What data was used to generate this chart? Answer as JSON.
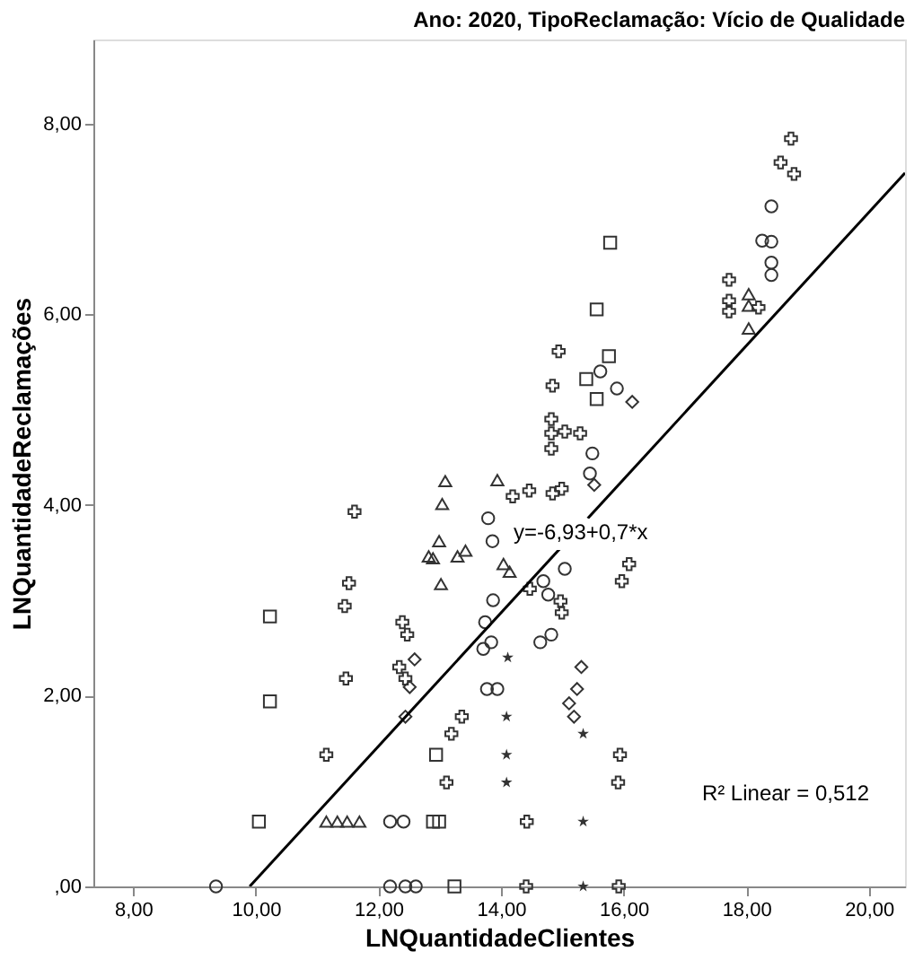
{
  "chart_data": {
    "type": "scatter",
    "title": "Ano: 2020, TipoReclamação: Vício de Qualidade",
    "xlabel": "LNQuantidadeClientes",
    "ylabel": "LNQuantidadeReclamações",
    "xlim": [
      7.35,
      20.59
    ],
    "ylim": [
      0,
      8.88
    ],
    "xticks": [
      {
        "value": 8,
        "label": "8,00"
      },
      {
        "value": 10,
        "label": "10,00"
      },
      {
        "value": 12,
        "label": "12,00"
      },
      {
        "value": 14,
        "label": "14,00"
      },
      {
        "value": 16,
        "label": "16,00"
      },
      {
        "value": 18,
        "label": "18,00"
      },
      {
        "value": 20,
        "label": "20,00"
      }
    ],
    "yticks": [
      {
        "value": 0,
        "label": ",00"
      },
      {
        "value": 2,
        "label": "2,00"
      },
      {
        "value": 4,
        "label": "4,00"
      },
      {
        "value": 6,
        "label": "6,00"
      },
      {
        "value": 8,
        "label": "8,00"
      }
    ],
    "grid": false,
    "series": [
      {
        "color": "#333333",
        "marker": "circle",
        "x": [
          18.41,
          18.26,
          18.41,
          18.41,
          18.41,
          15.62,
          15.89,
          15.49,
          15.45,
          15.04,
          13.87,
          13.84,
          14.82,
          13.77,
          13.94,
          12.19,
          12.41,
          9.35,
          12.19,
          12.44,
          12.61,
          13.79,
          13.86,
          14.69,
          14.77,
          14.64,
          13.74,
          13.71
        ],
        "values": [
          7.13,
          6.77,
          6.76,
          6.54,
          6.41,
          5.4,
          5.22,
          4.54,
          4.33,
          3.33,
          3.0,
          2.56,
          2.64,
          2.07,
          2.07,
          0.68,
          0.68,
          0,
          0,
          0,
          0,
          3.86,
          3.62,
          3.2,
          3.06,
          2.56,
          2.77,
          2.49
        ]
      },
      {
        "color": "#333333",
        "marker": "square",
        "x": [
          15.78,
          15.56,
          15.76,
          15.39,
          15.56,
          10.23,
          10.23,
          12.94,
          10.05,
          12.89,
          12.99,
          13.24
        ],
        "values": [
          6.75,
          6.05,
          5.56,
          5.32,
          5.11,
          2.83,
          1.94,
          1.38,
          0.68,
          0.68,
          0.68,
          0
        ]
      },
      {
        "color": "#333333",
        "marker": "triangle",
        "x": [
          18.04,
          18.04,
          18.04,
          13.94,
          14.04,
          14.14,
          13.09,
          13.04,
          12.99,
          12.89,
          12.82,
          13.29,
          13.42,
          13.02,
          11.15,
          11.33,
          11.49,
          11.69
        ],
        "values": [
          6.21,
          6.09,
          5.85,
          4.26,
          3.38,
          3.3,
          4.25,
          4.01,
          3.62,
          3.44,
          3.46,
          3.46,
          3.52,
          3.17,
          0.68,
          0.68,
          0.68,
          0.68
        ]
      },
      {
        "color": "#333333",
        "marker": "diamond",
        "x": [
          16.14,
          15.52,
          15.31,
          15.24,
          15.11,
          15.19,
          12.59,
          12.51,
          12.44
        ],
        "values": [
          5.08,
          4.21,
          2.3,
          2.07,
          1.92,
          1.78,
          2.38,
          2.09,
          1.78
        ]
      },
      {
        "color": "#333333",
        "marker": "cross",
        "x": [
          18.73,
          18.56,
          18.78,
          17.72,
          17.72,
          17.72,
          18.2,
          14.94,
          14.84,
          14.82,
          14.82,
          14.82,
          15.29,
          14.19,
          14.46,
          15.04,
          14.84,
          14.99,
          16.09,
          15.97,
          11.61,
          11.52,
          11.45,
          11.47,
          14.47,
          14.42,
          14.41,
          13.36,
          13.19,
          13.11,
          14.97,
          14.99,
          15.94,
          15.91,
          15.92,
          12.39,
          12.47,
          12.34,
          12.44,
          11.15
        ],
        "values": [
          7.84,
          7.59,
          7.47,
          6.36,
          6.14,
          6.03,
          6.07,
          5.61,
          5.25,
          4.9,
          4.75,
          4.59,
          4.75,
          4.09,
          4.15,
          4.77,
          4.12,
          4.17,
          3.38,
          3.2,
          3.93,
          3.18,
          2.94,
          2.18,
          3.12,
          0.68,
          0,
          1.78,
          1.6,
          1.09,
          2.99,
          2.87,
          1.38,
          1.09,
          0,
          2.77,
          2.64,
          2.3,
          2.18,
          1.38
        ]
      },
      {
        "color": "#333333",
        "marker": "star",
        "x": [
          14.11,
          14.09,
          14.09,
          14.09,
          15.34,
          15.34,
          15.34
        ],
        "values": [
          2.4,
          1.78,
          1.38,
          1.09,
          1.6,
          0.68,
          0
        ]
      },
      {
        "type": "line",
        "color": "#000000",
        "marker": "none",
        "x": [
          9.9,
          20.59
        ],
        "values": [
          0.0,
          7.48
        ]
      }
    ],
    "annotations": [
      {
        "text": "y=-6,93+0,7*x",
        "x": 15.3,
        "y": 3.72
      },
      "R² Linear = 0,512"
    ]
  }
}
